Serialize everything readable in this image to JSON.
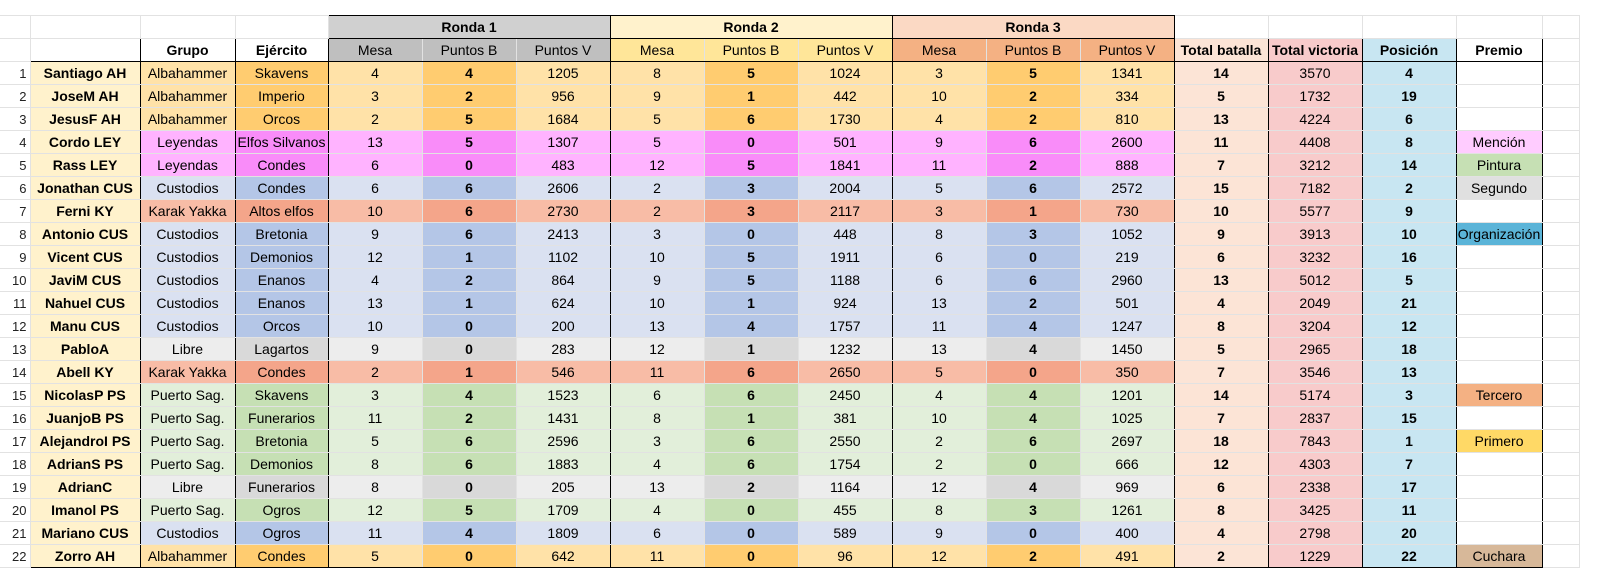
{
  "round_headers": [
    "Ronda 1",
    "Ronda 2",
    "Ronda 3"
  ],
  "headers": {
    "group": "Grupo",
    "army": "Ejército",
    "round_cols": [
      "Mesa",
      "Puntos B",
      "Puntos V"
    ],
    "total_battle": "Total batalla",
    "total_victory": "Total victoria",
    "position": "Posición",
    "prize": "Premio"
  },
  "colors": {
    "round1_header": "#d0d0d0",
    "round1_sub": "#bfbfbf",
    "round2_header": "#fff2cc",
    "round2_sub": "#ffe699",
    "round3_header": "#fbd9c4",
    "round3_sub": "#f4b183",
    "total_battle": "#fce4d6",
    "total_victory": "#f8cbcb",
    "position": "#c8e6f2",
    "name_bg": "#fff2cc"
  },
  "group_colors": {
    "Albahammer": [
      "#ffe2a8",
      "#ffcc70"
    ],
    "Leyendas": [
      "#ffb3ff",
      "#f98cf9"
    ],
    "Custodios": [
      "#dae1f1",
      "#b4c6e7"
    ],
    "Karak Yakka": [
      "#f8bca6",
      "#f4a58a"
    ],
    "Libre": [
      "#ededed",
      "#d9d9d9"
    ],
    "Puerto Sag.": [
      "#e2efda",
      "#c6e0b4"
    ]
  },
  "prize_colors": {
    "Mención": "#ffccff",
    "Pintura": "#c6e0b4",
    "Segundo": "#e0e0e0",
    "Organización": "#5bb4d8",
    "Tercero": "#f4b183",
    "Primero": "#ffd966",
    "Cuchara": "#d7b899"
  },
  "rows": [
    {
      "n": "1",
      "name": "Santiago AH",
      "group": "Albahammer",
      "army": "Skavens",
      "r1": [
        "4",
        "4",
        "1205"
      ],
      "r2": [
        "8",
        "5",
        "1024"
      ],
      "r3": [
        "3",
        "5",
        "1341"
      ],
      "tb": "14",
      "tv": "3570",
      "pos": "4",
      "prize": ""
    },
    {
      "n": "2",
      "name": "JoseM AH",
      "group": "Albahammer",
      "army": "Imperio",
      "r1": [
        "3",
        "2",
        "956"
      ],
      "r2": [
        "9",
        "1",
        "442"
      ],
      "r3": [
        "10",
        "2",
        "334"
      ],
      "tb": "5",
      "tv": "1732",
      "pos": "19",
      "prize": ""
    },
    {
      "n": "3",
      "name": "JesusF AH",
      "group": "Albahammer",
      "army": "Orcos",
      "r1": [
        "2",
        "5",
        "1684"
      ],
      "r2": [
        "5",
        "6",
        "1730"
      ],
      "r3": [
        "4",
        "2",
        "810"
      ],
      "tb": "13",
      "tv": "4224",
      "pos": "6",
      "prize": ""
    },
    {
      "n": "4",
      "name": "Cordo LEY",
      "group": "Leyendas",
      "army": "Elfos Silvanos",
      "r1": [
        "13",
        "5",
        "1307"
      ],
      "r2": [
        "5",
        "0",
        "501"
      ],
      "r3": [
        "9",
        "6",
        "2600"
      ],
      "tb": "11",
      "tv": "4408",
      "pos": "8",
      "prize": "Mención"
    },
    {
      "n": "5",
      "name": "Rass LEY",
      "group": "Leyendas",
      "army": "Condes",
      "r1": [
        "6",
        "0",
        "483"
      ],
      "r2": [
        "12",
        "5",
        "1841"
      ],
      "r3": [
        "11",
        "2",
        "888"
      ],
      "tb": "7",
      "tv": "3212",
      "pos": "14",
      "prize": "Pintura"
    },
    {
      "n": "6",
      "name": "Jonathan CUS",
      "group": "Custodios",
      "army": "Condes",
      "r1": [
        "6",
        "6",
        "2606"
      ],
      "r2": [
        "2",
        "3",
        "2004"
      ],
      "r3": [
        "5",
        "6",
        "2572"
      ],
      "tb": "15",
      "tv": "7182",
      "pos": "2",
      "prize": "Segundo"
    },
    {
      "n": "7",
      "name": "Ferni KY",
      "group": "Karak Yakka",
      "army": "Altos elfos",
      "r1": [
        "10",
        "6",
        "2730"
      ],
      "r2": [
        "2",
        "3",
        "2117"
      ],
      "r3": [
        "3",
        "1",
        "730"
      ],
      "tb": "10",
      "tv": "5577",
      "pos": "9",
      "prize": ""
    },
    {
      "n": "8",
      "name": "Antonio CUS",
      "group": "Custodios",
      "army": "Bretonia",
      "r1": [
        "9",
        "6",
        "2413"
      ],
      "r2": [
        "3",
        "0",
        "448"
      ],
      "r3": [
        "8",
        "3",
        "1052"
      ],
      "tb": "9",
      "tv": "3913",
      "pos": "10",
      "prize": "Organización"
    },
    {
      "n": "9",
      "name": "Vicent CUS",
      "group": "Custodios",
      "army": "Demonios",
      "r1": [
        "12",
        "1",
        "1102"
      ],
      "r2": [
        "10",
        "5",
        "1911"
      ],
      "r3": [
        "6",
        "0",
        "219"
      ],
      "tb": "6",
      "tv": "3232",
      "pos": "16",
      "prize": ""
    },
    {
      "n": "10",
      "name": "JaviM CUS",
      "group": "Custodios",
      "army": "Enanos",
      "r1": [
        "4",
        "2",
        "864"
      ],
      "r2": [
        "9",
        "5",
        "1188"
      ],
      "r3": [
        "6",
        "6",
        "2960"
      ],
      "tb": "13",
      "tv": "5012",
      "pos": "5",
      "prize": ""
    },
    {
      "n": "11",
      "name": "Nahuel CUS",
      "group": "Custodios",
      "army": "Enanos",
      "r1": [
        "13",
        "1",
        "624"
      ],
      "r2": [
        "10",
        "1",
        "924"
      ],
      "r3": [
        "13",
        "2",
        "501"
      ],
      "tb": "4",
      "tv": "2049",
      "pos": "21",
      "prize": ""
    },
    {
      "n": "12",
      "name": "Manu CUS",
      "group": "Custodios",
      "army": "Orcos",
      "r1": [
        "10",
        "0",
        "200"
      ],
      "r2": [
        "13",
        "4",
        "1757"
      ],
      "r3": [
        "11",
        "4",
        "1247"
      ],
      "tb": "8",
      "tv": "3204",
      "pos": "12",
      "prize": ""
    },
    {
      "n": "13",
      "name": "PabloA",
      "group": "Libre",
      "army": "Lagartos",
      "r1": [
        "9",
        "0",
        "283"
      ],
      "r2": [
        "12",
        "1",
        "1232"
      ],
      "r3": [
        "13",
        "4",
        "1450"
      ],
      "tb": "5",
      "tv": "2965",
      "pos": "18",
      "prize": ""
    },
    {
      "n": "14",
      "name": "Abell KY",
      "group": "Karak Yakka",
      "army": "Condes",
      "r1": [
        "2",
        "1",
        "546"
      ],
      "r2": [
        "11",
        "6",
        "2650"
      ],
      "r3": [
        "5",
        "0",
        "350"
      ],
      "tb": "7",
      "tv": "3546",
      "pos": "13",
      "prize": ""
    },
    {
      "n": "15",
      "name": "NicolasP PS",
      "group": "Puerto Sag.",
      "army": "Skavens",
      "r1": [
        "3",
        "4",
        "1523"
      ],
      "r2": [
        "6",
        "6",
        "2450"
      ],
      "r3": [
        "4",
        "4",
        "1201"
      ],
      "tb": "14",
      "tv": "5174",
      "pos": "3",
      "prize": "Tercero"
    },
    {
      "n": "16",
      "name": "JuanjoB PS",
      "group": "Puerto Sag.",
      "army": "Funerarios",
      "r1": [
        "11",
        "2",
        "1431"
      ],
      "r2": [
        "8",
        "1",
        "381"
      ],
      "r3": [
        "10",
        "4",
        "1025"
      ],
      "tb": "7",
      "tv": "2837",
      "pos": "15",
      "prize": ""
    },
    {
      "n": "17",
      "name": "AlejandroI PS",
      "group": "Puerto Sag.",
      "army": "Bretonia",
      "r1": [
        "5",
        "6",
        "2596"
      ],
      "r2": [
        "3",
        "6",
        "2550"
      ],
      "r3": [
        "2",
        "6",
        "2697"
      ],
      "tb": "18",
      "tv": "7843",
      "pos": "1",
      "prize": "Primero"
    },
    {
      "n": "18",
      "name": "AdrianS PS",
      "group": "Puerto Sag.",
      "army": "Demonios",
      "r1": [
        "8",
        "6",
        "1883"
      ],
      "r2": [
        "4",
        "6",
        "1754"
      ],
      "r3": [
        "2",
        "0",
        "666"
      ],
      "tb": "12",
      "tv": "4303",
      "pos": "7",
      "prize": ""
    },
    {
      "n": "19",
      "name": "AdrianC",
      "group": "Libre",
      "army": "Funerarios",
      "r1": [
        "8",
        "0",
        "205"
      ],
      "r2": [
        "13",
        "2",
        "1164"
      ],
      "r3": [
        "12",
        "4",
        "969"
      ],
      "tb": "6",
      "tv": "2338",
      "pos": "17",
      "prize": ""
    },
    {
      "n": "20",
      "name": "Imanol PS",
      "group": "Puerto Sag.",
      "army": "Ogros",
      "r1": [
        "12",
        "5",
        "1709"
      ],
      "r2": [
        "4",
        "0",
        "455"
      ],
      "r3": [
        "8",
        "3",
        "1261"
      ],
      "tb": "8",
      "tv": "3425",
      "pos": "11",
      "prize": ""
    },
    {
      "n": "21",
      "name": "Mariano CUS",
      "group": "Custodios",
      "army": "Ogros",
      "r1": [
        "11",
        "4",
        "1809"
      ],
      "r2": [
        "6",
        "0",
        "589"
      ],
      "r3": [
        "9",
        "0",
        "400"
      ],
      "tb": "4",
      "tv": "2798",
      "pos": "20",
      "prize": ""
    },
    {
      "n": "22",
      "name": "Zorro AH",
      "group": "Albahammer",
      "army": "Condes",
      "r1": [
        "5",
        "0",
        "642"
      ],
      "r2": [
        "11",
        "0",
        "96"
      ],
      "r3": [
        "12",
        "2",
        "491"
      ],
      "tb": "2",
      "tv": "1229",
      "pos": "22",
      "prize": "Cuchara"
    }
  ]
}
